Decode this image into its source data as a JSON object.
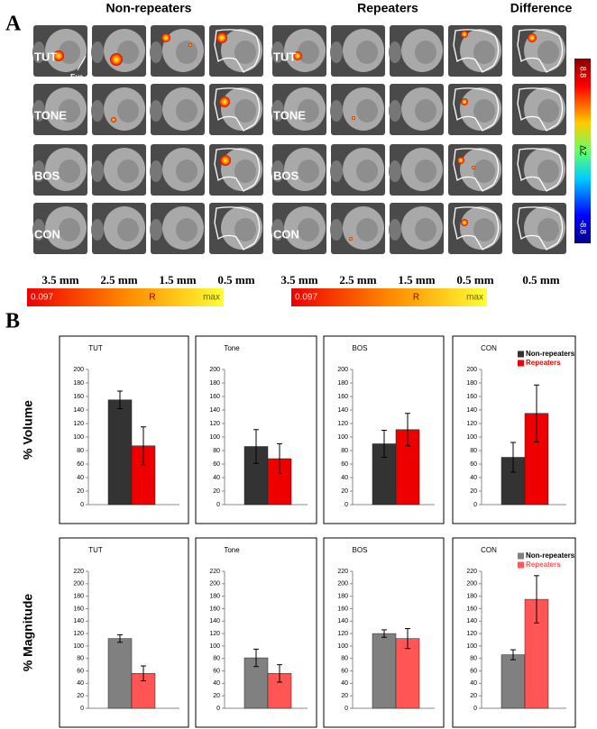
{
  "panel_a": {
    "label": "A",
    "groups": [
      "Non-repeaters",
      "Repeaters",
      "Difference"
    ],
    "rows": [
      "TUT",
      "TONE",
      "BOS",
      "CON"
    ],
    "eye": "Eye",
    "depths": [
      "3.5 mm",
      "2.5 mm",
      "1.5 mm",
      "0.5 mm"
    ],
    "colorbar": {
      "min": "0.097",
      "name": "R",
      "max": "max"
    },
    "zbar": {
      "top": "8.8",
      "name": "ΔZ",
      "bottom": "-8.8"
    }
  },
  "panel_b": {
    "label": "B"
  },
  "chart_data": [
    {
      "type": "bar",
      "title": "TUT",
      "ylabel": "% Volume",
      "ylim": [
        0,
        200
      ],
      "yticks": [
        0,
        20,
        40,
        60,
        80,
        100,
        120,
        140,
        160,
        180,
        200
      ],
      "series": [
        {
          "color": "#333333",
          "values": [
            155
          ],
          "errors": [
            13
          ]
        },
        {
          "color": "#ee0000",
          "values": [
            87
          ],
          "errors": [
            28
          ]
        }
      ]
    },
    {
      "type": "bar",
      "title": "Tone",
      "ylim": [
        0,
        200
      ],
      "yticks": [
        0,
        20,
        40,
        60,
        80,
        100,
        120,
        140,
        160,
        180,
        200
      ],
      "series": [
        {
          "color": "#333333",
          "values": [
            86
          ],
          "errors": [
            25
          ]
        },
        {
          "color": "#ee0000",
          "values": [
            68
          ],
          "errors": [
            22
          ]
        }
      ]
    },
    {
      "type": "bar",
      "title": "BOS",
      "ylim": [
        0,
        200
      ],
      "yticks": [
        0,
        20,
        40,
        60,
        80,
        100,
        120,
        140,
        160,
        180,
        200
      ],
      "series": [
        {
          "color": "#333333",
          "values": [
            90
          ],
          "errors": [
            20
          ]
        },
        {
          "color": "#ee0000",
          "values": [
            111
          ],
          "errors": [
            24
          ]
        }
      ]
    },
    {
      "type": "bar",
      "title": "CON",
      "ylim": [
        0,
        200
      ],
      "yticks": [
        0,
        20,
        40,
        60,
        80,
        100,
        120,
        140,
        160,
        180,
        200
      ],
      "series": [
        {
          "name": "Non-repeaters",
          "color": "#333333",
          "values": [
            70
          ],
          "errors": [
            22
          ]
        },
        {
          "name": "Repeaters",
          "color": "#ee0000",
          "values": [
            135
          ],
          "errors": [
            42
          ]
        }
      ]
    },
    {
      "type": "bar",
      "title": "TUT",
      "ylabel": "% Magnitude",
      "ylim": [
        0,
        220
      ],
      "yticks": [
        0,
        20,
        40,
        60,
        80,
        100,
        120,
        140,
        160,
        180,
        200,
        220
      ],
      "series": [
        {
          "color": "#808080",
          "values": [
            112
          ],
          "errors": [
            6
          ]
        },
        {
          "color": "#ff5555",
          "values": [
            56
          ],
          "errors": [
            12
          ]
        }
      ]
    },
    {
      "type": "bar",
      "title": "Tone",
      "ylim": [
        0,
        220
      ],
      "yticks": [
        0,
        20,
        40,
        60,
        80,
        100,
        120,
        140,
        160,
        180,
        200,
        220
      ],
      "series": [
        {
          "color": "#808080",
          "values": [
            81
          ],
          "errors": [
            14
          ]
        },
        {
          "color": "#ff5555",
          "values": [
            56
          ],
          "errors": [
            14
          ]
        }
      ]
    },
    {
      "type": "bar",
      "title": "BOS",
      "ylim": [
        0,
        220
      ],
      "yticks": [
        0,
        20,
        40,
        60,
        80,
        100,
        120,
        140,
        160,
        180,
        200,
        220
      ],
      "series": [
        {
          "color": "#808080",
          "values": [
            120
          ],
          "errors": [
            6
          ]
        },
        {
          "color": "#ff5555",
          "values": [
            112
          ],
          "errors": [
            16
          ]
        }
      ]
    },
    {
      "type": "bar",
      "title": "CON",
      "ylim": [
        0,
        220
      ],
      "yticks": [
        0,
        20,
        40,
        60,
        80,
        100,
        120,
        140,
        160,
        180,
        200,
        220
      ],
      "series": [
        {
          "name": "Non-repeaters",
          "color": "#808080",
          "values": [
            86
          ],
          "errors": [
            8
          ]
        },
        {
          "name": "Repeaters",
          "color": "#ff5555",
          "values": [
            175
          ],
          "errors": [
            38
          ]
        }
      ]
    }
  ]
}
